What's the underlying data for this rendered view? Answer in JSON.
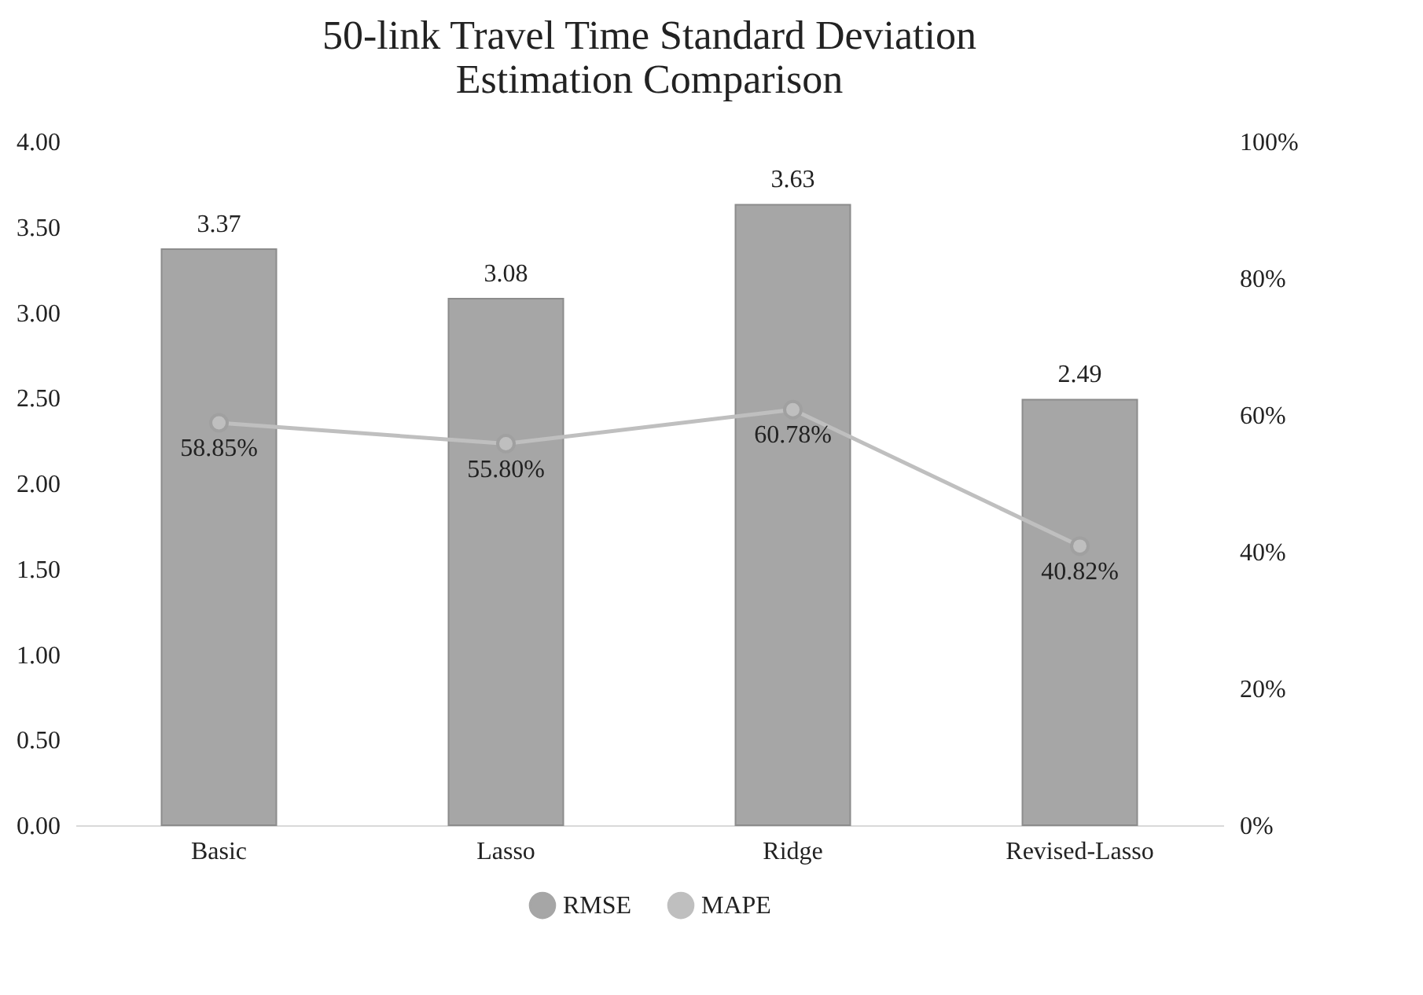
{
  "chart_data": {
    "type": "bar",
    "title": "50-link Travel Time Standard Deviation Estimation Comparison",
    "categories": [
      "Basic",
      "Lasso",
      "Ridge",
      "Revised-Lasso"
    ],
    "series": [
      {
        "name": "RMSE",
        "color": "#a6a6a6",
        "values": [
          3.37,
          3.08,
          3.63,
          2.49
        ],
        "value_labels": [
          "3.37",
          "3.08",
          "3.63",
          "2.49"
        ]
      },
      {
        "name": "MAPE",
        "type": "line",
        "axis": "y2",
        "color": "#bfbfbf",
        "marker": "circle",
        "values": [
          58.85,
          55.8,
          60.78,
          40.82
        ],
        "value_labels": [
          "58.85%",
          "55.80%",
          "60.78%",
          "40.82%"
        ]
      }
    ],
    "ylim": [
      0,
      4
    ],
    "yticks": [
      {
        "value": 0,
        "label": "0.00"
      },
      {
        "value": 0.5,
        "label": "0.50"
      },
      {
        "value": 1,
        "label": "1.00"
      },
      {
        "value": 1.5,
        "label": "1.50"
      },
      {
        "value": 2,
        "label": "2.00"
      },
      {
        "value": 2.5,
        "label": "2.50"
      },
      {
        "value": 3,
        "label": "3.00"
      },
      {
        "value": 3.5,
        "label": "3.50"
      },
      {
        "value": 4,
        "label": "4.00"
      }
    ],
    "y2lim": [
      0,
      100
    ],
    "y2ticks": [
      {
        "value": 0,
        "label": "0%"
      },
      {
        "value": 20,
        "label": "20%"
      },
      {
        "value": 40,
        "label": "40%"
      },
      {
        "value": 60,
        "label": "60%"
      },
      {
        "value": 80,
        "label": "80%"
      },
      {
        "value": 100,
        "label": "100%"
      }
    ],
    "legend": "bottom"
  }
}
